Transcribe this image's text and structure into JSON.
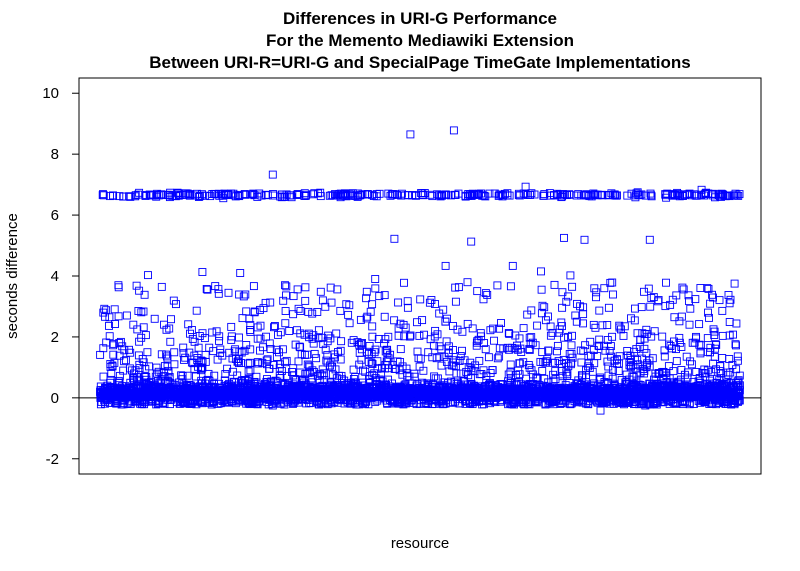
{
  "chart_data": {
    "type": "scatter",
    "title": [
      "Differences in URI-G Performance",
      "For the Memento Mediawiki Extension",
      "Between URI-R=URI-G and SpecialPage TimeGate Implementations"
    ],
    "xlabel": "resource",
    "ylabel": "seconds difference",
    "ylim": [
      -2.5,
      10.5
    ],
    "yticks": [
      -2,
      0,
      2,
      4,
      6,
      8,
      10
    ],
    "xlim": [
      0,
      1000
    ],
    "reference_line_y": 0,
    "marker": "open-square",
    "marker_color": "#0000ff",
    "grid": false,
    "legend": "none",
    "series": [
      {
        "points": [
          [
            485,
            8.65
          ],
          [
            553,
            8.78
          ],
          [
            270,
            7.33
          ],
          [
            665,
            6.93
          ],
          [
            940,
            6.83
          ],
          [
            460,
            5.22
          ],
          [
            725,
            5.25
          ],
          [
            757,
            5.19
          ],
          [
            580,
            5.13
          ],
          [
            859,
            5.19
          ],
          [
            540,
            4.33
          ],
          [
            645,
            4.33
          ],
          [
            160,
            4.13
          ],
          [
            219,
            4.1
          ],
          [
            75,
            4.03
          ],
          [
            689,
            4.15
          ],
          [
            735,
            4.02
          ],
          [
            168,
            3.55
          ],
          [
            185,
            3.57
          ],
          [
            180,
            3.67
          ],
          [
            321,
            3.63
          ],
          [
            345,
            3.48
          ],
          [
            430,
            3.9
          ],
          [
            555,
            3.62
          ],
          [
            605,
            3.38
          ],
          [
            690,
            3.55
          ],
          [
            850,
            3.48
          ],
          [
            872,
            3.17
          ],
          [
            910,
            3.62
          ],
          [
            895,
            3.22
          ],
          [
            968,
            3.21
          ],
          [
            60,
            2.85
          ],
          [
            100,
            2.4
          ],
          [
            205,
            2.33
          ],
          [
            290,
            2.85
          ],
          [
            390,
            2.45
          ],
          [
            610,
            2.22
          ],
          [
            700,
            2.67
          ],
          [
            745,
            2.5
          ],
          [
            820,
            2.35
          ],
          [
            950,
            2.8
          ],
          [
            30,
            1.8
          ],
          [
            130,
            1.65
          ],
          [
            250,
            1.55
          ],
          [
            360,
            1.95
          ],
          [
            470,
            1.6
          ],
          [
            600,
            1.8
          ],
          [
            780,
            1.7
          ],
          [
            900,
            1.6
          ],
          [
            50,
            0.9
          ],
          [
            150,
            0.7
          ],
          [
            300,
            0.85
          ],
          [
            450,
            0.6
          ],
          [
            650,
            0.75
          ],
          [
            850,
            0.8
          ],
          [
            980,
            0.5
          ],
          [
            130,
            -0.15
          ],
          [
            270,
            -0.25
          ],
          [
            414,
            -0.2
          ],
          [
            523,
            -0.2
          ],
          [
            696,
            -0.22
          ],
          [
            782,
            -0.42
          ],
          [
            852,
            -0.25
          ],
          [
            890,
            -0.2
          ]
        ]
      }
    ]
  }
}
